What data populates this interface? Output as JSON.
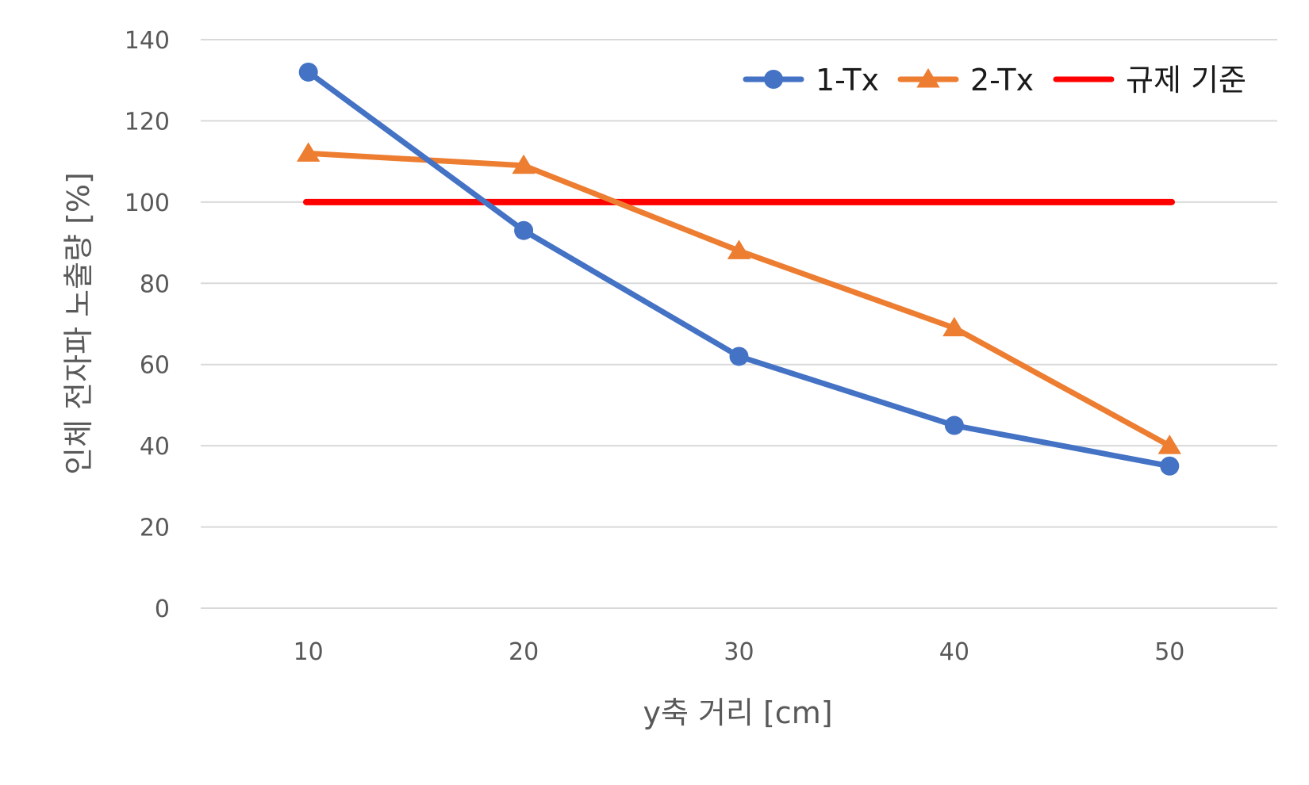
{
  "chart_data": {
    "type": "line",
    "x": [
      10,
      20,
      30,
      40,
      50
    ],
    "xlabel": "y축 거리 [cm]",
    "ylabel": "인체 전자파 노출량 [%]",
    "ylim": [
      0,
      140
    ],
    "yticks": [
      0,
      20,
      40,
      60,
      80,
      100,
      120,
      140
    ],
    "grid": true,
    "legend_position": "top-right",
    "series": [
      {
        "name": "1-Tx",
        "values": [
          132,
          93,
          62,
          45,
          35
        ],
        "color": "#4472C4",
        "marker": "circle"
      },
      {
        "name": "2-Tx",
        "values": [
          112,
          109,
          88,
          69,
          40
        ],
        "color": "#ED7D31",
        "marker": "triangle"
      },
      {
        "name": "규제 기준",
        "values": [
          100,
          100,
          100,
          100,
          100
        ],
        "color": "#FF0000",
        "marker": "none"
      }
    ]
  }
}
